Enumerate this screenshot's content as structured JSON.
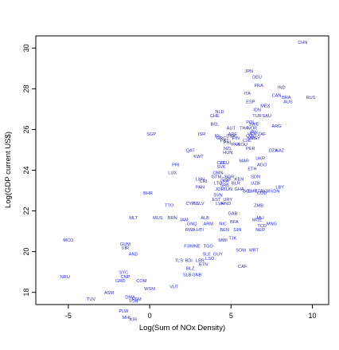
{
  "chart_data": {
    "type": "scatter",
    "xlabel": "Log(Sum of NOx Density)",
    "ylabel": "Log(GDP current US$)",
    "xlim": [
      -7,
      11
    ],
    "ylim": [
      17.4,
      30.6
    ],
    "x_ticks": [
      -5,
      0,
      5,
      10
    ],
    "y_ticks": [
      18,
      20,
      22,
      24,
      26,
      28,
      30
    ],
    "grid": false,
    "point_color": "#2b2bd6",
    "points": [
      {
        "label": "CHN",
        "x": 9.4,
        "y": 30.2
      },
      {
        "label": "JPN",
        "x": 6.1,
        "y": 28.8
      },
      {
        "label": "DEU",
        "x": 6.6,
        "y": 28.5
      },
      {
        "label": "FRA",
        "x": 6.7,
        "y": 28.1
      },
      {
        "label": "IND",
        "x": 8.1,
        "y": 28.0
      },
      {
        "label": "ITA",
        "x": 6.0,
        "y": 27.7
      },
      {
        "label": "BRA",
        "x": 8.4,
        "y": 27.5
      },
      {
        "label": "CAN",
        "x": 7.8,
        "y": 27.6
      },
      {
        "label": "RUS",
        "x": 9.9,
        "y": 27.5
      },
      {
        "label": "ESP",
        "x": 6.2,
        "y": 27.3
      },
      {
        "label": "AUS",
        "x": 8.5,
        "y": 27.3
      },
      {
        "label": "MEX",
        "x": 7.1,
        "y": 27.1
      },
      {
        "label": "IDN",
        "x": 6.6,
        "y": 26.9
      },
      {
        "label": "NLD",
        "x": 4.3,
        "y": 26.8
      },
      {
        "label": "TUR",
        "x": 6.6,
        "y": 26.6
      },
      {
        "label": "SAU",
        "x": 7.2,
        "y": 26.6
      },
      {
        "label": "CHE",
        "x": 4.0,
        "y": 26.6
      },
      {
        "label": "BEL",
        "x": 4.0,
        "y": 26.2
      },
      {
        "label": "POL",
        "x": 6.2,
        "y": 26.3
      },
      {
        "label": "ARG",
        "x": 7.8,
        "y": 26.1
      },
      {
        "label": "SWE",
        "x": 6.4,
        "y": 26.2
      },
      {
        "label": "NOR",
        "x": 6.3,
        "y": 26.0
      },
      {
        "label": "AUT",
        "x": 5.0,
        "y": 26.0
      },
      {
        "label": "THA",
        "x": 5.8,
        "y": 26.0
      },
      {
        "label": "IRN",
        "x": 6.4,
        "y": 25.8
      },
      {
        "label": "ZAF",
        "x": 6.9,
        "y": 25.7
      },
      {
        "label": "VEN",
        "x": 6.3,
        "y": 25.7
      },
      {
        "label": "ARE",
        "x": 5.1,
        "y": 25.7
      },
      {
        "label": "COL",
        "x": 6.2,
        "y": 25.6
      },
      {
        "label": "DNK",
        "x": 5.0,
        "y": 25.6
      },
      {
        "label": "FIN",
        "x": 5.3,
        "y": 25.5
      },
      {
        "label": "MYS",
        "x": 6.3,
        "y": 25.5
      },
      {
        "label": "EGY",
        "x": 6.5,
        "y": 25.5
      },
      {
        "label": "CHL",
        "x": 6.0,
        "y": 25.4
      },
      {
        "label": "SGP",
        "x": 0.1,
        "y": 25.7
      },
      {
        "label": "ISR",
        "x": 3.2,
        "y": 25.7
      },
      {
        "label": "PRT",
        "x": 4.6,
        "y": 25.4
      },
      {
        "label": "IRL",
        "x": 4.2,
        "y": 25.6
      },
      {
        "label": "GRC",
        "x": 4.4,
        "y": 25.5
      },
      {
        "label": "PHL",
        "x": 4.8,
        "y": 25.3
      },
      {
        "label": "PAK",
        "x": 5.3,
        "y": 25.2
      },
      {
        "label": "NZL",
        "x": 4.8,
        "y": 25.0
      },
      {
        "label": "ROU",
        "x": 5.7,
        "y": 25.2
      },
      {
        "label": "DZA",
        "x": 7.6,
        "y": 24.9
      },
      {
        "label": "KAZ",
        "x": 8.0,
        "y": 24.9
      },
      {
        "label": "PER",
        "x": 6.2,
        "y": 25.0
      },
      {
        "label": "QAT",
        "x": 2.5,
        "y": 24.9
      },
      {
        "label": "KWT",
        "x": 3.0,
        "y": 24.6
      },
      {
        "label": "HUN",
        "x": 4.8,
        "y": 24.8
      },
      {
        "label": "UKR",
        "x": 6.8,
        "y": 24.5
      },
      {
        "label": "MAR",
        "x": 5.8,
        "y": 24.4
      },
      {
        "label": "AGO",
        "x": 6.9,
        "y": 24.2
      },
      {
        "label": "ECU",
        "x": 4.6,
        "y": 24.3
      },
      {
        "label": "CZE",
        "x": 4.4,
        "y": 24.3
      },
      {
        "label": "SVK",
        "x": 4.4,
        "y": 24.1
      },
      {
        "label": "ETH",
        "x": 6.3,
        "y": 24.0
      },
      {
        "label": "PRI",
        "x": 1.6,
        "y": 24.2
      },
      {
        "label": "LUX",
        "x": 1.4,
        "y": 23.8
      },
      {
        "label": "BHR",
        "x": -0.1,
        "y": 22.8
      },
      {
        "label": "OMN",
        "x": 4.2,
        "y": 23.8
      },
      {
        "label": "GTM",
        "x": 4.1,
        "y": 23.6
      },
      {
        "label": "CUB",
        "x": 4.7,
        "y": 23.5
      },
      {
        "label": "BGR",
        "x": 4.9,
        "y": 23.6
      },
      {
        "label": "SDN",
        "x": 6.5,
        "y": 23.6
      },
      {
        "label": "KEN",
        "x": 5.5,
        "y": 23.5
      },
      {
        "label": "LBN",
        "x": 3.1,
        "y": 23.5
      },
      {
        "label": "BLR",
        "x": 5.3,
        "y": 23.3
      },
      {
        "label": "SRB",
        "x": 4.6,
        "y": 23.2
      },
      {
        "label": "TUN",
        "x": 4.8,
        "y": 23.0
      },
      {
        "label": "CRI",
        "x": 3.3,
        "y": 23.4
      },
      {
        "label": "PAN",
        "x": 3.1,
        "y": 23.1
      },
      {
        "label": "LTU",
        "x": 4.2,
        "y": 23.3
      },
      {
        "label": "JOR",
        "x": 4.3,
        "y": 23.0
      },
      {
        "label": "LKA",
        "x": 4.6,
        "y": 23.4
      },
      {
        "label": "UZB",
        "x": 6.5,
        "y": 23.3
      },
      {
        "label": "LBY",
        "x": 8.0,
        "y": 23.1
      },
      {
        "label": "SVN",
        "x": 4.2,
        "y": 22.7
      },
      {
        "label": "GHA",
        "x": 5.5,
        "y": 23.0
      },
      {
        "label": "BOL",
        "x": 6.0,
        "y": 22.9
      },
      {
        "label": "TZA",
        "x": 6.7,
        "y": 22.9
      },
      {
        "label": "COD",
        "x": 6.9,
        "y": 22.8
      },
      {
        "label": "TKM",
        "x": 7.1,
        "y": 22.9
      },
      {
        "label": "CMR",
        "x": 6.3,
        "y": 22.9
      },
      {
        "label": "SDN2",
        "x": 7.7,
        "y": 22.9
      },
      {
        "label": "EST",
        "x": 4.1,
        "y": 22.5
      },
      {
        "label": "LVA",
        "x": 4.3,
        "y": 22.3
      },
      {
        "label": "HND",
        "x": 4.7,
        "y": 22.3
      },
      {
        "label": "URY",
        "x": 4.8,
        "y": 22.5
      },
      {
        "label": "TTO",
        "x": 1.2,
        "y": 22.2
      },
      {
        "label": "CYP",
        "x": 2.5,
        "y": 22.3
      },
      {
        "label": "ISL",
        "x": 2.8,
        "y": 22.3
      },
      {
        "label": "SLV",
        "x": 3.1,
        "y": 22.3
      },
      {
        "label": "ZMB",
        "x": 6.7,
        "y": 22.2
      },
      {
        "label": "MUS",
        "x": 0.5,
        "y": 21.6
      },
      {
        "label": "MLT",
        "x": -1.0,
        "y": 21.6
      },
      {
        "label": "BRN",
        "x": 1.4,
        "y": 21.6
      },
      {
        "label": "JAM",
        "x": 2.1,
        "y": 21.5
      },
      {
        "label": "GNQ",
        "x": 2.6,
        "y": 21.3
      },
      {
        "label": "ARM",
        "x": 3.6,
        "y": 21.3
      },
      {
        "label": "ALB",
        "x": 3.4,
        "y": 21.6
      },
      {
        "label": "NIC",
        "x": 4.5,
        "y": 21.3
      },
      {
        "label": "BFA",
        "x": 5.2,
        "y": 21.4
      },
      {
        "label": "GAB",
        "x": 5.1,
        "y": 21.8
      },
      {
        "label": "BEN",
        "x": 4.6,
        "y": 21.0
      },
      {
        "label": "GIN",
        "x": 5.4,
        "y": 21.0
      },
      {
        "label": "MOZ",
        "x": 6.6,
        "y": 21.5
      },
      {
        "label": "MLI",
        "x": 6.8,
        "y": 21.6
      },
      {
        "label": "NER",
        "x": 6.8,
        "y": 21.0
      },
      {
        "label": "TCD",
        "x": 6.9,
        "y": 21.2
      },
      {
        "label": "MNG",
        "x": 7.5,
        "y": 21.3
      },
      {
        "label": "RWA",
        "x": 2.5,
        "y": 21.0
      },
      {
        "label": "HTI",
        "x": 3.1,
        "y": 21.0
      },
      {
        "label": "MWI",
        "x": 4.5,
        "y": 20.5
      },
      {
        "label": "TJK",
        "x": 5.1,
        "y": 20.6
      },
      {
        "label": "MCO",
        "x": -5.0,
        "y": 20.5
      },
      {
        "label": "GUM",
        "x": -1.5,
        "y": 20.3
      },
      {
        "label": "VIR",
        "x": -1.5,
        "y": 20.1
      },
      {
        "label": "FJI",
        "x": 2.3,
        "y": 20.2
      },
      {
        "label": "MNE",
        "x": 2.8,
        "y": 20.2
      },
      {
        "label": "TGO",
        "x": 3.6,
        "y": 20.2
      },
      {
        "label": "SOM",
        "x": 5.6,
        "y": 20.0
      },
      {
        "label": "MRT",
        "x": 6.4,
        "y": 20.0
      },
      {
        "label": "AND",
        "x": -1.0,
        "y": 19.8
      },
      {
        "label": "SLE",
        "x": 3.5,
        "y": 19.8
      },
      {
        "label": "GUY",
        "x": 4.2,
        "y": 19.8
      },
      {
        "label": "LSO",
        "x": 3.7,
        "y": 19.6
      },
      {
        "label": "TLS",
        "x": 1.8,
        "y": 19.5
      },
      {
        "label": "BDI",
        "x": 2.4,
        "y": 19.5
      },
      {
        "label": "LBR",
        "x": 3.1,
        "y": 19.5
      },
      {
        "label": "BTN",
        "x": 3.3,
        "y": 19.3
      },
      {
        "label": "CAF",
        "x": 5.7,
        "y": 19.2
      },
      {
        "label": "BLZ",
        "x": 2.5,
        "y": 19.1
      },
      {
        "label": "SYC",
        "x": -1.6,
        "y": 18.9
      },
      {
        "label": "GNB",
        "x": 2.9,
        "y": 18.8
      },
      {
        "label": "CNP",
        "x": -1.5,
        "y": 18.7
      },
      {
        "label": "GRD",
        "x": -1.8,
        "y": 18.5
      },
      {
        "label": "COM",
        "x": -0.5,
        "y": 18.5
      },
      {
        "label": "SLB",
        "x": 2.3,
        "y": 18.8
      },
      {
        "label": "VUT",
        "x": 1.5,
        "y": 18.2
      },
      {
        "label": "WSM",
        "x": 0.0,
        "y": 18.1
      },
      {
        "label": "ASM",
        "x": -2.5,
        "y": 17.9
      },
      {
        "label": "DMA",
        "x": -1.2,
        "y": 17.7
      },
      {
        "label": "TON",
        "x": -1.0,
        "y": 17.5
      },
      {
        "label": "FSM",
        "x": -0.8,
        "y": 17.6
      },
      {
        "label": "PLW",
        "x": -1.6,
        "y": 17.0
      },
      {
        "label": "MHL",
        "x": -1.4,
        "y": 16.7
      },
      {
        "label": "KIR",
        "x": -1.0,
        "y": 16.6
      },
      {
        "label": "NRU",
        "x": -5.2,
        "y": 18.7
      },
      {
        "label": "TUV",
        "x": -3.6,
        "y": 17.6
      }
    ]
  }
}
